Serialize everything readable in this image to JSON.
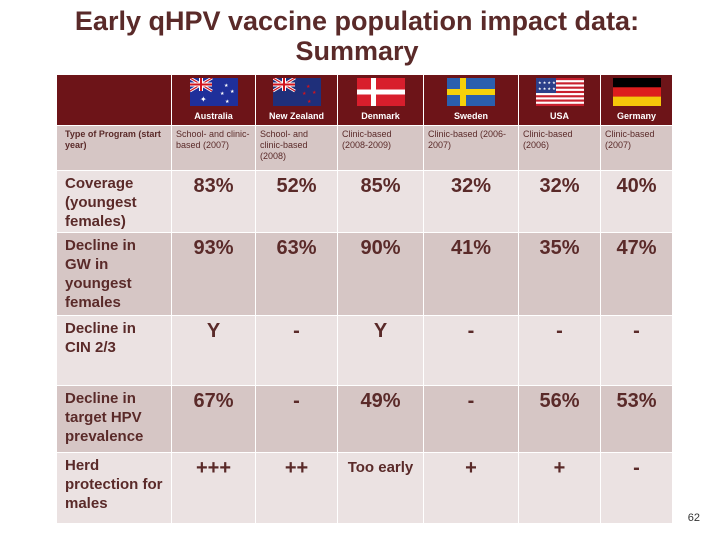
{
  "title_line1": "Early qHPV vaccine population impact data:",
  "title_line2": "Summary",
  "page_number": "62",
  "countries": [
    {
      "name": "Australia",
      "flag": "australia-flag"
    },
    {
      "name": "New Zealand",
      "flag": "new-zealand-flag"
    },
    {
      "name": "Denmark",
      "flag": "denmark-flag"
    },
    {
      "name": "Sweden",
      "flag": "sweden-flag"
    },
    {
      "name": "USA",
      "flag": "usa-flag"
    },
    {
      "name": "Germany",
      "flag": "germany-flag"
    }
  ],
  "program_row": {
    "label": "Type of Program (start year)",
    "values": [
      "School- and clinic-based (2007)",
      "School- and clinic-based (2008)",
      "Clinic-based (2008-2009)",
      "Clinic-based (2006-2007)",
      "Clinic-based (2006)",
      "Clinic-based (2007)"
    ]
  },
  "rows": [
    {
      "label": "Coverage (youngest females)",
      "values": [
        "83%",
        "52%",
        "85%",
        "32%",
        "32%",
        "40%"
      ]
    },
    {
      "label": "Decline in GW in youngest females",
      "values": [
        "93%",
        "63%",
        "90%",
        "41%",
        "35%",
        "47%"
      ]
    },
    {
      "label": "Decline in CIN 2/3",
      "values": [
        "Y",
        "-",
        "Y",
        "-",
        "-",
        "-"
      ]
    },
    {
      "label": "Decline in target HPV prevalence",
      "values": [
        "67%",
        "-",
        "49%",
        "-",
        "56%",
        "53%"
      ]
    },
    {
      "label": "Herd protection for males",
      "values": [
        "+++",
        "++",
        "Too early",
        "+",
        "+",
        "-"
      ]
    }
  ],
  "colors": {
    "header_bg": "#6d1418",
    "title": "#5a2a29",
    "row_light": "#ebe2e2",
    "row_dark": "#d6c6c5"
  }
}
